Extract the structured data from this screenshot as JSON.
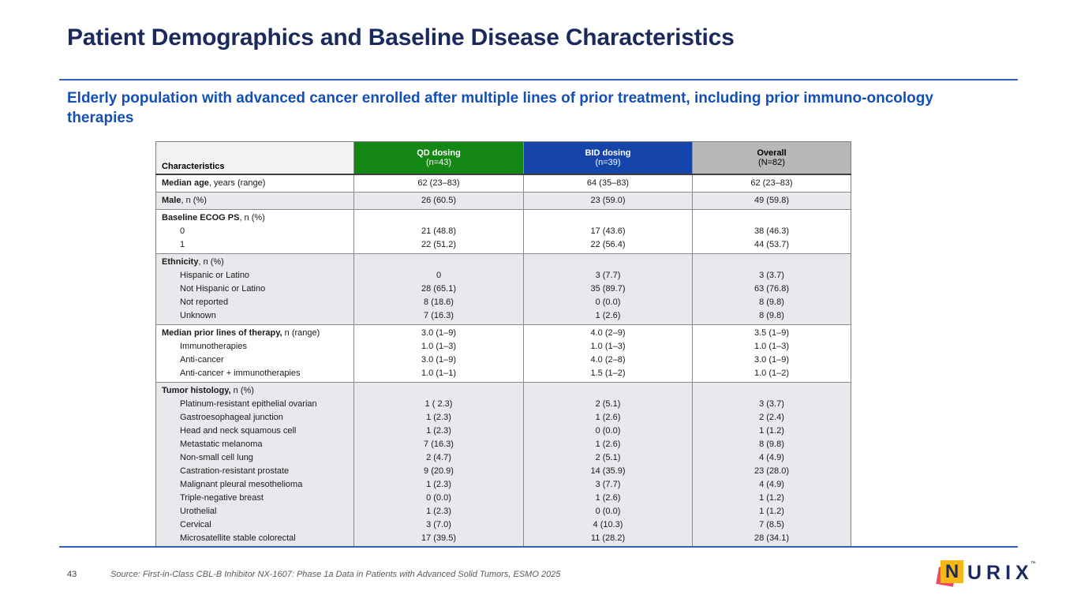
{
  "slide": {
    "title": "Patient Demographics and Baseline Disease Characteristics",
    "subtitle": "Elderly population with advanced cancer enrolled after multiple lines of prior treatment, including prior immuno-oncology therapies",
    "footer": {
      "page_number": "43",
      "source": "Source: First-in-Class CBL-B Inhibitor NX-1607: Phase 1a Data in Patients with Advanced Solid Tumors, ESMO 2025"
    },
    "logo": {
      "n": "N",
      "rest": "URIX",
      "tm": "™"
    }
  },
  "colors": {
    "title_navy": "#1b2a5e",
    "subtitle_blue": "#1450b4",
    "rule_blue": "#2f62b8",
    "qd_green": "#158715",
    "bid_blue": "#1544ab",
    "overall_gray": "#b8b8b8",
    "stripe_gray": "#e7e9ec",
    "logo_yellow": "#f7b718",
    "logo_pink": "#ee4a68"
  },
  "table": {
    "header": {
      "characteristics": "Characteristics",
      "columns": [
        {
          "label": "QD dosing",
          "sub": "(n=43)"
        },
        {
          "label": "BID dosing",
          "sub": "(n=39)"
        },
        {
          "label": "Overall",
          "sub": "(N=82)"
        }
      ]
    },
    "groups": [
      {
        "shade": "white",
        "rows": [
          {
            "bold": "Median age",
            "rest": ", years (range)",
            "indent": false,
            "values": [
              "62 (23–83)",
              "64 (35–83)",
              "62 (23–83)"
            ]
          }
        ]
      },
      {
        "shade": "gray",
        "rows": [
          {
            "bold": "Male",
            "rest": ", n (%)",
            "indent": false,
            "values": [
              "26 (60.5)",
              "23 (59.0)",
              "49 (59.8)"
            ]
          }
        ]
      },
      {
        "shade": "white",
        "rows": [
          {
            "bold": "Baseline ECOG PS",
            "rest": ", n (%)",
            "indent": false,
            "values": [
              "",
              "",
              ""
            ]
          },
          {
            "bold": "",
            "rest": "0",
            "indent": true,
            "values": [
              "21 (48.8)",
              "17 (43.6)",
              "38 (46.3)"
            ]
          },
          {
            "bold": "",
            "rest": "1",
            "indent": true,
            "values": [
              "22 (51.2)",
              "22 (56.4)",
              "44 (53.7)"
            ]
          }
        ]
      },
      {
        "shade": "gray",
        "rows": [
          {
            "bold": "Ethnicity",
            "rest": ", n (%)",
            "indent": false,
            "values": [
              "",
              "",
              ""
            ]
          },
          {
            "bold": "",
            "rest": "Hispanic or Latino",
            "indent": true,
            "values": [
              "0",
              "3 (7.7)",
              "3 (3.7)"
            ]
          },
          {
            "bold": "",
            "rest": "Not Hispanic or Latino",
            "indent": true,
            "values": [
              "28 (65.1)",
              "35 (89.7)",
              "63 (76.8)"
            ]
          },
          {
            "bold": "",
            "rest": "Not reported",
            "indent": true,
            "values": [
              "8 (18.6)",
              "0 (0.0)",
              "8 (9.8)"
            ]
          },
          {
            "bold": "",
            "rest": "Unknown",
            "indent": true,
            "values": [
              "7 (16.3)",
              "1 (2.6)",
              "8 (9.8)"
            ]
          }
        ]
      },
      {
        "shade": "white",
        "rows": [
          {
            "bold": "Median prior lines of therapy,",
            "rest": " n (range)",
            "indent": false,
            "values": [
              "3.0 (1–9)",
              "4.0 (2–9)",
              "3.5 (1–9)"
            ]
          },
          {
            "bold": "",
            "rest": "Immunotherapies",
            "indent": true,
            "values": [
              "1.0 (1–3)",
              "1.0 (1–3)",
              "1.0 (1–3)"
            ]
          },
          {
            "bold": "",
            "rest": "Anti-cancer",
            "indent": true,
            "values": [
              "3.0 (1–9)",
              "4.0 (2–8)",
              "3.0 (1–9)"
            ]
          },
          {
            "bold": "",
            "rest": "Anti-cancer + immunotherapies",
            "indent": true,
            "values": [
              "1.0 (1–1)",
              "1.5 (1–2)",
              "1.0 (1–2)"
            ]
          }
        ]
      },
      {
        "shade": "gray",
        "rows": [
          {
            "bold": "Tumor histology,",
            "rest": " n (%)",
            "indent": false,
            "values": [
              "",
              "",
              ""
            ]
          },
          {
            "bold": "",
            "rest": "Platinum-resistant epithelial ovarian",
            "indent": true,
            "values": [
              "1 ( 2.3)",
              "2 (5.1)",
              "3 (3.7)"
            ]
          },
          {
            "bold": "",
            "rest": "Gastroesophageal junction",
            "indent": true,
            "values": [
              "1 (2.3)",
              "1 (2.6)",
              "2 (2.4)"
            ]
          },
          {
            "bold": "",
            "rest": "Head and neck squamous cell",
            "indent": true,
            "values": [
              "1 (2.3)",
              "0 (0.0)",
              "1 (1.2)"
            ]
          },
          {
            "bold": "",
            "rest": "Metastatic melanoma",
            "indent": true,
            "values": [
              "7 (16.3)",
              "1 (2.6)",
              "8 (9.8)"
            ]
          },
          {
            "bold": "",
            "rest": "Non-small cell lung",
            "indent": true,
            "values": [
              "2 (4.7)",
              "2 (5.1)",
              "4 (4.9)"
            ]
          },
          {
            "bold": "",
            "rest": "Castration-resistant prostate",
            "indent": true,
            "values": [
              "9 (20.9)",
              "14 (35.9)",
              "23 (28.0)"
            ]
          },
          {
            "bold": "",
            "rest": "Malignant pleural mesothelioma",
            "indent": true,
            "values": [
              "1 (2.3)",
              "3 (7.7)",
              "4 (4.9)"
            ]
          },
          {
            "bold": "",
            "rest": "Triple-negative breast",
            "indent": true,
            "values": [
              "0 (0.0)",
              "1 (2.6)",
              "1 (1.2)"
            ]
          },
          {
            "bold": "",
            "rest": "Urothelial",
            "indent": true,
            "values": [
              "1 (2.3)",
              "0 (0.0)",
              "1 (1.2)"
            ]
          },
          {
            "bold": "",
            "rest": "Cervical",
            "indent": true,
            "values": [
              "3 (7.0)",
              "4 (10.3)",
              "7 (8.5)"
            ]
          },
          {
            "bold": "",
            "rest": "Microsatellite stable colorectal",
            "indent": true,
            "values": [
              "17 (39.5)",
              "11 (28.2)",
              "28 (34.1)"
            ]
          }
        ]
      }
    ]
  }
}
